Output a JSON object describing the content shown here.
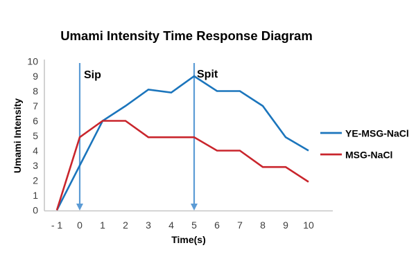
{
  "chart_data": {
    "type": "line",
    "title": "Umami Intensity Time Response Diagram",
    "xlabel": "Time(s)",
    "ylabel": "Umami Intensity",
    "x": [
      -1,
      0,
      1,
      2,
      3,
      4,
      5,
      6,
      7,
      8,
      9,
      10
    ],
    "x_tick_labels": [
      "- 1",
      "0",
      "1",
      "2",
      "3",
      "4",
      "5",
      "6",
      "7",
      "8",
      "9",
      "10"
    ],
    "y_ticks": [
      0,
      1,
      2,
      3,
      4,
      5,
      6,
      7,
      8,
      9,
      10
    ],
    "xlim": [
      -1.5,
      11
    ],
    "ylim": [
      0,
      10
    ],
    "grid": false,
    "legend_position": "right-middle",
    "series": [
      {
        "name": "YE-MSG-NaCl",
        "color": "#1B75BC",
        "values": [
          0,
          3,
          6,
          7,
          8.1,
          7.9,
          9,
          8,
          8,
          7,
          4.9,
          4
        ]
      },
      {
        "name": "MSG-NaCl",
        "color": "#C9252C",
        "values": [
          0,
          4.9,
          6,
          6,
          4.9,
          4.9,
          4.9,
          4,
          4,
          2.9,
          2.9,
          1.9
        ]
      }
    ],
    "annotations": [
      {
        "label": "Sip",
        "x": 0
      },
      {
        "label": "Spit",
        "x": 5
      }
    ],
    "styles": {
      "annotation_arrow_color": "#5B9BD5",
      "axis_line_color": "#C6C6C6",
      "tick_label_color": "#3D3D3D",
      "text_color": "#000000",
      "background": "#FFFFFF"
    }
  }
}
